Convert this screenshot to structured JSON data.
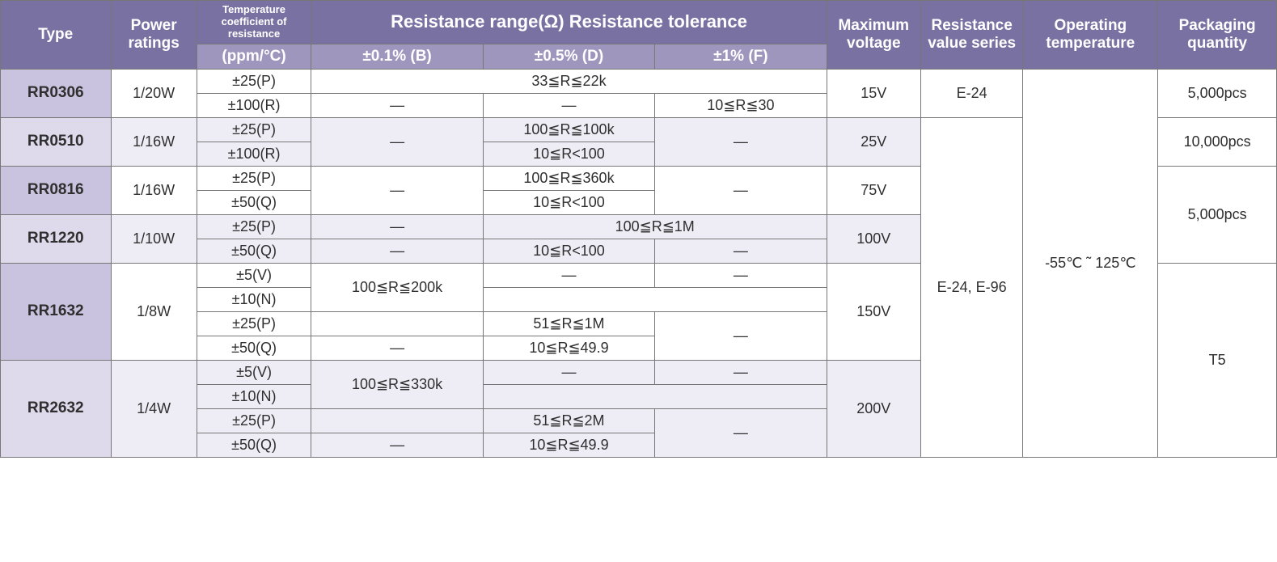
{
  "colors": {
    "header_dark": "#7a71a3",
    "header_light": "#9e96bd",
    "type_bg_even": "#c9c3df",
    "type_bg_odd": "#dedaec",
    "zebra_light": "#ffffff",
    "zebra_tint": "#eeecf5",
    "border": "#777777",
    "header_text": "#ffffff",
    "body_text": "#2f2f2f"
  },
  "header": {
    "type": "Type",
    "power": "Power ratings",
    "tcr_top": "Temperature coefficient of resistance",
    "tcr_unit": "(ppm/°C)",
    "range_title": "Resistance range(Ω) Resistance tolerance",
    "tol_b": "±0.1% (B)",
    "tol_d": "±0.5% (D)",
    "tol_f": "±1% (F)",
    "maxv": "Maximum voltage",
    "rvs": "Resistance value series",
    "optemp": "Operating temperature",
    "pkg": "Packaging quantity"
  },
  "shared": {
    "optemp": "-55℃ ˜ 125℃",
    "series_big": "E-24, E-96"
  },
  "rows": {
    "r0306": {
      "type": "RR0306",
      "power": "1/20W",
      "tcr1": "±25(P)",
      "range1_span": "33≦R≦22k",
      "tcr2": "±100(R)",
      "b2": "—",
      "d2": "—",
      "f2": "10≦R≦30",
      "maxv": "15V",
      "series": "E-24",
      "pkg": "5,000pcs"
    },
    "r0510": {
      "type": "RR0510",
      "power": "1/16W",
      "tcr1": "±25(P)",
      "b_span": "—",
      "d1": "100≦R≦100k",
      "f_span": "—",
      "tcr2": "±100(R)",
      "d2": "10≦R<100",
      "maxv": "25V",
      "pkg": "10,000pcs"
    },
    "r0816": {
      "type": "RR0816",
      "power": "1/16W",
      "tcr1": "±25(P)",
      "b_span": "—",
      "d1": "100≦R≦360k",
      "f_span": "—",
      "tcr2": "±50(Q)",
      "d2": "10≦R<100",
      "maxv": "75V"
    },
    "r1220": {
      "type": "RR1220",
      "power": "1/10W",
      "tcr1": "±25(P)",
      "b1": "—",
      "df1_span": "100≦R≦1M",
      "tcr2": "±50(Q)",
      "b2": "—",
      "d2": "10≦R<100",
      "f2": "—",
      "maxv": "100V",
      "pkg_0816_1220": "5,000pcs"
    },
    "r1632": {
      "type": "RR1632",
      "power": "1/8W",
      "tcr1": "±5(V)",
      "b12_span": "100≦R≦200k",
      "d1": "—",
      "f1": "—",
      "tcr2": "±10(N)",
      "tcr3": "±25(P)",
      "d3": "51≦R≦1M",
      "f34_span": "—",
      "tcr4": "±50(Q)",
      "b4": "—",
      "d4": "10≦R≦49.9",
      "maxv": "150V"
    },
    "r2632": {
      "type": "RR2632",
      "power": "1/4W",
      "tcr1": "±5(V)",
      "b12_span": "100≦R≦330k",
      "d1": "—",
      "f1": "—",
      "tcr2": "±10(N)",
      "tcr3": "±25(P)",
      "d3": "51≦R≦2M",
      "f34_span": "—",
      "tcr4": "±50(Q)",
      "b4": "—",
      "d4": "10≦R≦49.9",
      "maxv": "200V",
      "pkg_1632_2632": "T5"
    }
  }
}
